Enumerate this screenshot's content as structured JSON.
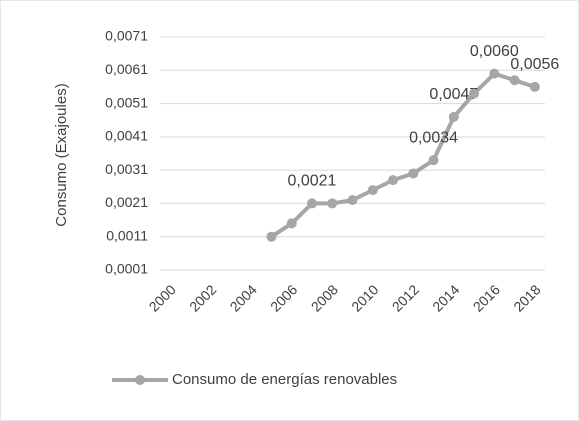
{
  "chart_data": {
    "type": "line",
    "y_label": "Consumo (Exajoules)",
    "categories": [
      "2000",
      null,
      "2002",
      null,
      "2004",
      null,
      "2006",
      null,
      "2008",
      null,
      "2010",
      null,
      "2012",
      null,
      "2014",
      null,
      "2016",
      null,
      "2018"
    ],
    "series": [
      {
        "name": "Consumo de energías renovables",
        "color": "#a6a6a6",
        "values": [
          null,
          null,
          null,
          null,
          null,
          0.0011,
          0.0015,
          0.0021,
          0.0021,
          0.0022,
          0.0025,
          0.0028,
          0.003,
          0.0034,
          0.0047,
          0.0054,
          0.006,
          0.0058,
          0.0056
        ],
        "value_labels": [
          null,
          null,
          null,
          null,
          null,
          null,
          null,
          "0,0021",
          null,
          null,
          null,
          null,
          null,
          "0,0034",
          "0,0047",
          null,
          "0,0060",
          null,
          "0,0056"
        ]
      }
    ],
    "ylim": [
      0.0001,
      0.0071
    ],
    "yticks": [
      {
        "value": 0.0001,
        "label": "0,0001"
      },
      {
        "value": 0.0011,
        "label": "0,0011"
      },
      {
        "value": 0.0021,
        "label": "0,0021"
      },
      {
        "value": 0.0031,
        "label": "0,0031"
      },
      {
        "value": 0.0041,
        "label": "0,0041"
      },
      {
        "value": 0.0051,
        "label": "0,0051"
      },
      {
        "value": 0.0061,
        "label": "0,0061"
      },
      {
        "value": 0.0071,
        "label": "0,0071"
      }
    ],
    "grid": true,
    "legend": "bottom"
  }
}
